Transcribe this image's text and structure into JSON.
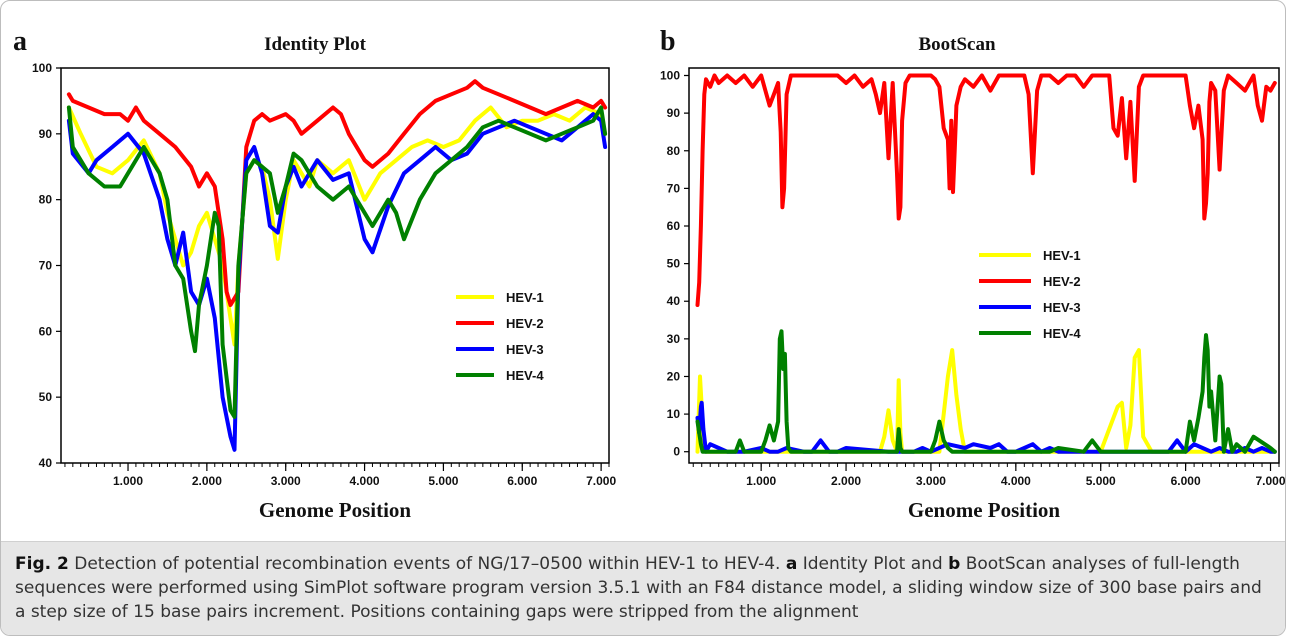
{
  "caption": {
    "fig_label": "Fig. 2",
    "intro": " Detection of potential recombination events of NG/17–0500 within HEV-1 to HEV-4. ",
    "ref_a": "a",
    "mid1": " Identity Plot and ",
    "ref_b": "b",
    "rest": " BootScan analyses of full-length sequences were performed using SimPlot software program version 3.5.1 with an F84 distance model, a sliding window size of 300 base pairs and a step size of 15 base pairs increment. Positions containing gaps were stripped from the alignment"
  },
  "colors": {
    "HEV-1": "#ffff00",
    "HEV-2": "#ff0000",
    "HEV-3": "#0000ff",
    "HEV-4": "#008000"
  },
  "chart_data": [
    {
      "panel_letter": "a",
      "type": "line",
      "title": "Identity Plot",
      "xlabel": "Genome Position",
      "ylabel": "",
      "xlim": [
        150,
        7100
      ],
      "ylim": [
        40,
        100
      ],
      "xticks": [
        1000,
        2000,
        3000,
        4000,
        5000,
        6000,
        7000
      ],
      "xtick_labels": [
        "1.000",
        "2.000",
        "3.000",
        "4.000",
        "5.000",
        "6.000",
        "7.000"
      ],
      "yticks": [
        40,
        50,
        60,
        70,
        80,
        90,
        100
      ],
      "ytick_labels": [
        "40",
        "50",
        "60",
        "70",
        "80",
        "90",
        "100"
      ],
      "legend_position": "center-right",
      "series": [
        {
          "name": "HEV-1",
          "x": [
            250,
            400,
            600,
            800,
            1000,
            1200,
            1400,
            1500,
            1600,
            1700,
            1800,
            1900,
            2000,
            2100,
            2200,
            2300,
            2350,
            2400,
            2500,
            2600,
            2700,
            2800,
            2900,
            3000,
            3100,
            3200,
            3300,
            3400,
            3600,
            3800,
            4000,
            4100,
            4200,
            4400,
            4600,
            4800,
            5000,
            5200,
            5400,
            5600,
            5800,
            6000,
            6200,
            6400,
            6600,
            6800,
            7000,
            7050
          ],
          "y": [
            94,
            90,
            85,
            84,
            86,
            89,
            84,
            78,
            74,
            70,
            72,
            76,
            78,
            74,
            70,
            62,
            58,
            70,
            84,
            86,
            85,
            80,
            71,
            80,
            86,
            84,
            82,
            86,
            84,
            86,
            80,
            82,
            84,
            86,
            88,
            89,
            88,
            89,
            92,
            94,
            91,
            92,
            92,
            93,
            92,
            94,
            93,
            90
          ]
        },
        {
          "name": "HEV-2",
          "x": [
            250,
            300,
            500,
            700,
            900,
            1000,
            1100,
            1200,
            1400,
            1600,
            1800,
            1900,
            2000,
            2100,
            2200,
            2250,
            2300,
            2400,
            2500,
            2600,
            2700,
            2800,
            3000,
            3100,
            3200,
            3400,
            3600,
            3700,
            3800,
            4000,
            4100,
            4300,
            4500,
            4700,
            4900,
            5100,
            5300,
            5400,
            5500,
            5700,
            5900,
            6100,
            6300,
            6500,
            6700,
            6900,
            7000,
            7050
          ],
          "y": [
            96,
            95,
            94,
            93,
            93,
            92,
            94,
            92,
            90,
            88,
            85,
            82,
            84,
            82,
            74,
            66,
            64,
            66,
            88,
            92,
            93,
            92,
            93,
            92,
            90,
            92,
            94,
            93,
            90,
            86,
            85,
            87,
            90,
            93,
            95,
            96,
            97,
            98,
            97,
            96,
            95,
            94,
            93,
            94,
            95,
            94,
            95,
            94
          ]
        },
        {
          "name": "HEV-3",
          "x": [
            250,
            300,
            500,
            600,
            800,
            1000,
            1200,
            1400,
            1500,
            1600,
            1700,
            1800,
            1900,
            2000,
            2100,
            2200,
            2300,
            2350,
            2400,
            2500,
            2600,
            2700,
            2800,
            2900,
            3000,
            3100,
            3200,
            3400,
            3600,
            3800,
            4000,
            4100,
            4300,
            4500,
            4700,
            4900,
            5100,
            5300,
            5500,
            5700,
            5900,
            6100,
            6300,
            6500,
            6700,
            6900,
            7000,
            7050
          ],
          "y": [
            92,
            87,
            84,
            86,
            88,
            90,
            87,
            80,
            74,
            70,
            75,
            66,
            64,
            68,
            62,
            50,
            44,
            42,
            68,
            86,
            88,
            84,
            76,
            75,
            82,
            85,
            82,
            86,
            83,
            84,
            74,
            72,
            79,
            84,
            86,
            88,
            86,
            87,
            90,
            91,
            92,
            91,
            90,
            89,
            91,
            93,
            92,
            88
          ]
        },
        {
          "name": "HEV-4",
          "x": [
            250,
            300,
            500,
            700,
            900,
            1000,
            1200,
            1400,
            1500,
            1600,
            1700,
            1800,
            1850,
            1900,
            2000,
            2100,
            2150,
            2200,
            2300,
            2350,
            2400,
            2500,
            2600,
            2700,
            2800,
            2900,
            3000,
            3100,
            3200,
            3400,
            3600,
            3800,
            4000,
            4100,
            4300,
            4400,
            4500,
            4700,
            4900,
            5100,
            5300,
            5500,
            5700,
            5900,
            6100,
            6300,
            6500,
            6700,
            6900,
            7000,
            7050
          ],
          "y": [
            94,
            88,
            84,
            82,
            82,
            84,
            88,
            84,
            80,
            70,
            68,
            60,
            57,
            64,
            70,
            78,
            76,
            58,
            48,
            47,
            70,
            84,
            86,
            85,
            84,
            78,
            82,
            87,
            86,
            82,
            80,
            82,
            78,
            76,
            80,
            78,
            74,
            80,
            84,
            86,
            88,
            91,
            92,
            91,
            90,
            89,
            90,
            91,
            92,
            94,
            90
          ]
        }
      ]
    },
    {
      "panel_letter": "b",
      "type": "line",
      "title": "BootScan",
      "xlabel": "Genome Position",
      "ylabel": "",
      "xlim": [
        150,
        7100
      ],
      "ylim": [
        -3,
        102
      ],
      "xticks": [
        1000,
        2000,
        3000,
        4000,
        5000,
        6000,
        7000
      ],
      "xtick_labels": [
        "1.000",
        "2.000",
        "3.000",
        "4.000",
        "5.000",
        "6.000",
        "7.000"
      ],
      "yticks": [
        0,
        10,
        20,
        30,
        40,
        50,
        60,
        70,
        80,
        90,
        100
      ],
      "ytick_labels": [
        "0",
        "10",
        "20",
        "30",
        "40",
        "50",
        "60",
        "70",
        "80",
        "90",
        "100"
      ],
      "legend_position": "center",
      "series": [
        {
          "name": "HEV-1",
          "x": [
            250,
            280,
            300,
            320,
            350,
            400,
            2400,
            2450,
            2500,
            2550,
            2600,
            2620,
            2640,
            2660,
            2700,
            3100,
            3150,
            3200,
            3250,
            3300,
            3350,
            3400,
            5000,
            5100,
            5200,
            5250,
            5300,
            5350,
            5400,
            5450,
            5500,
            5600,
            7050
          ],
          "y": [
            0,
            20,
            12,
            3,
            0,
            0,
            0,
            4,
            11,
            3,
            0,
            19,
            5,
            0,
            0,
            0,
            10,
            20,
            27,
            15,
            6,
            0,
            0,
            6,
            12,
            13,
            1,
            7,
            25,
            27,
            4,
            0,
            0
          ]
        },
        {
          "name": "HEV-2",
          "x": [
            250,
            270,
            290,
            310,
            330,
            350,
            400,
            450,
            500,
            600,
            700,
            800,
            900,
            1000,
            1050,
            1100,
            1150,
            1200,
            1230,
            1250,
            1270,
            1300,
            1350,
            1400,
            1500,
            1600,
            1700,
            1800,
            1900,
            2000,
            2100,
            2200,
            2300,
            2350,
            2400,
            2450,
            2500,
            2550,
            2600,
            2620,
            2640,
            2660,
            2700,
            2750,
            2800,
            3000,
            3050,
            3100,
            3150,
            3200,
            3220,
            3240,
            3260,
            3280,
            3300,
            3350,
            3400,
            3500,
            3600,
            3700,
            3800,
            3900,
            4000,
            4100,
            4150,
            4200,
            4250,
            4300,
            4400,
            4500,
            4600,
            4700,
            4800,
            4900,
            5000,
            5100,
            5150,
            5200,
            5250,
            5300,
            5350,
            5400,
            5450,
            5500,
            5600,
            5700,
            5800,
            5900,
            6000,
            6050,
            6100,
            6150,
            6200,
            6220,
            6240,
            6260,
            6280,
            6300,
            6350,
            6400,
            6450,
            6500,
            6600,
            6700,
            6800,
            6850,
            6900,
            6950,
            7000,
            7050
          ],
          "y": [
            39,
            45,
            60,
            80,
            95,
            99,
            97,
            100,
            98,
            100,
            98,
            100,
            97,
            100,
            96,
            92,
            95,
            98,
            85,
            65,
            70,
            95,
            100,
            100,
            100,
            100,
            100,
            100,
            100,
            98,
            100,
            97,
            99,
            95,
            90,
            98,
            78,
            98,
            74,
            62,
            65,
            88,
            98,
            100,
            100,
            100,
            99,
            97,
            86,
            83,
            70,
            88,
            69,
            80,
            92,
            97,
            99,
            97,
            100,
            96,
            100,
            100,
            100,
            100,
            95,
            74,
            96,
            100,
            100,
            98,
            100,
            100,
            97,
            100,
            100,
            100,
            86,
            84,
            94,
            78,
            93,
            72,
            97,
            100,
            100,
            100,
            100,
            100,
            100,
            92,
            86,
            92,
            83,
            62,
            66,
            74,
            93,
            98,
            96,
            75,
            96,
            100,
            98,
            96,
            100,
            92,
            88,
            97,
            96,
            98
          ]
        },
        {
          "name": "HEV-3",
          "x": [
            250,
            270,
            290,
            300,
            320,
            350,
            400,
            500,
            600,
            800,
            1000,
            1100,
            1200,
            1300,
            1500,
            1600,
            1700,
            1800,
            1900,
            2000,
            2500,
            2800,
            2900,
            3000,
            3200,
            3400,
            3500,
            3700,
            3800,
            3900,
            4000,
            4100,
            4200,
            4300,
            4400,
            4500,
            4600,
            5000,
            5800,
            5900,
            6000,
            6100,
            6200,
            6300,
            6400,
            6500,
            6600,
            6700,
            6800,
            6900,
            7000,
            7050
          ],
          "y": [
            9,
            5,
            12,
            13,
            6,
            0,
            2,
            1,
            0,
            0,
            1,
            0,
            0,
            1,
            0,
            0,
            3,
            0,
            0,
            1,
            0,
            0,
            1,
            0,
            2,
            1,
            2,
            1,
            2,
            0,
            0,
            1,
            2,
            0,
            1,
            0,
            0,
            0,
            0,
            3,
            0,
            2,
            1,
            0,
            1,
            0,
            0,
            1,
            0,
            1,
            0,
            0
          ]
        },
        {
          "name": "HEV-4",
          "x": [
            250,
            270,
            290,
            310,
            350,
            400,
            700,
            750,
            800,
            1000,
            1050,
            1100,
            1150,
            1200,
            1220,
            1240,
            1260,
            1280,
            1300,
            1320,
            1350,
            1400,
            1500,
            1700,
            2000,
            2500,
            2600,
            2620,
            2640,
            2660,
            2700,
            3000,
            3050,
            3100,
            3150,
            3200,
            3250,
            4000,
            4400,
            4500,
            4800,
            4900,
            5000,
            6000,
            6050,
            6100,
            6150,
            6200,
            6220,
            6240,
            6260,
            6280,
            6300,
            6350,
            6400,
            6420,
            6450,
            6500,
            6550,
            6600,
            6700,
            6800,
            7000,
            7050
          ],
          "y": [
            8,
            5,
            2,
            0,
            0,
            0,
            0,
            3,
            0,
            0,
            3,
            7,
            3,
            8,
            30,
            32,
            22,
            26,
            8,
            1,
            0,
            0,
            0,
            0,
            0,
            0,
            0,
            6,
            1,
            0,
            0,
            0,
            3,
            8,
            3,
            1,
            0,
            0,
            0,
            1,
            0,
            3,
            0,
            0,
            8,
            3,
            9,
            16,
            25,
            31,
            27,
            12,
            16,
            3,
            20,
            18,
            0,
            6,
            0,
            2,
            0,
            4,
            1,
            0
          ]
        }
      ]
    }
  ]
}
